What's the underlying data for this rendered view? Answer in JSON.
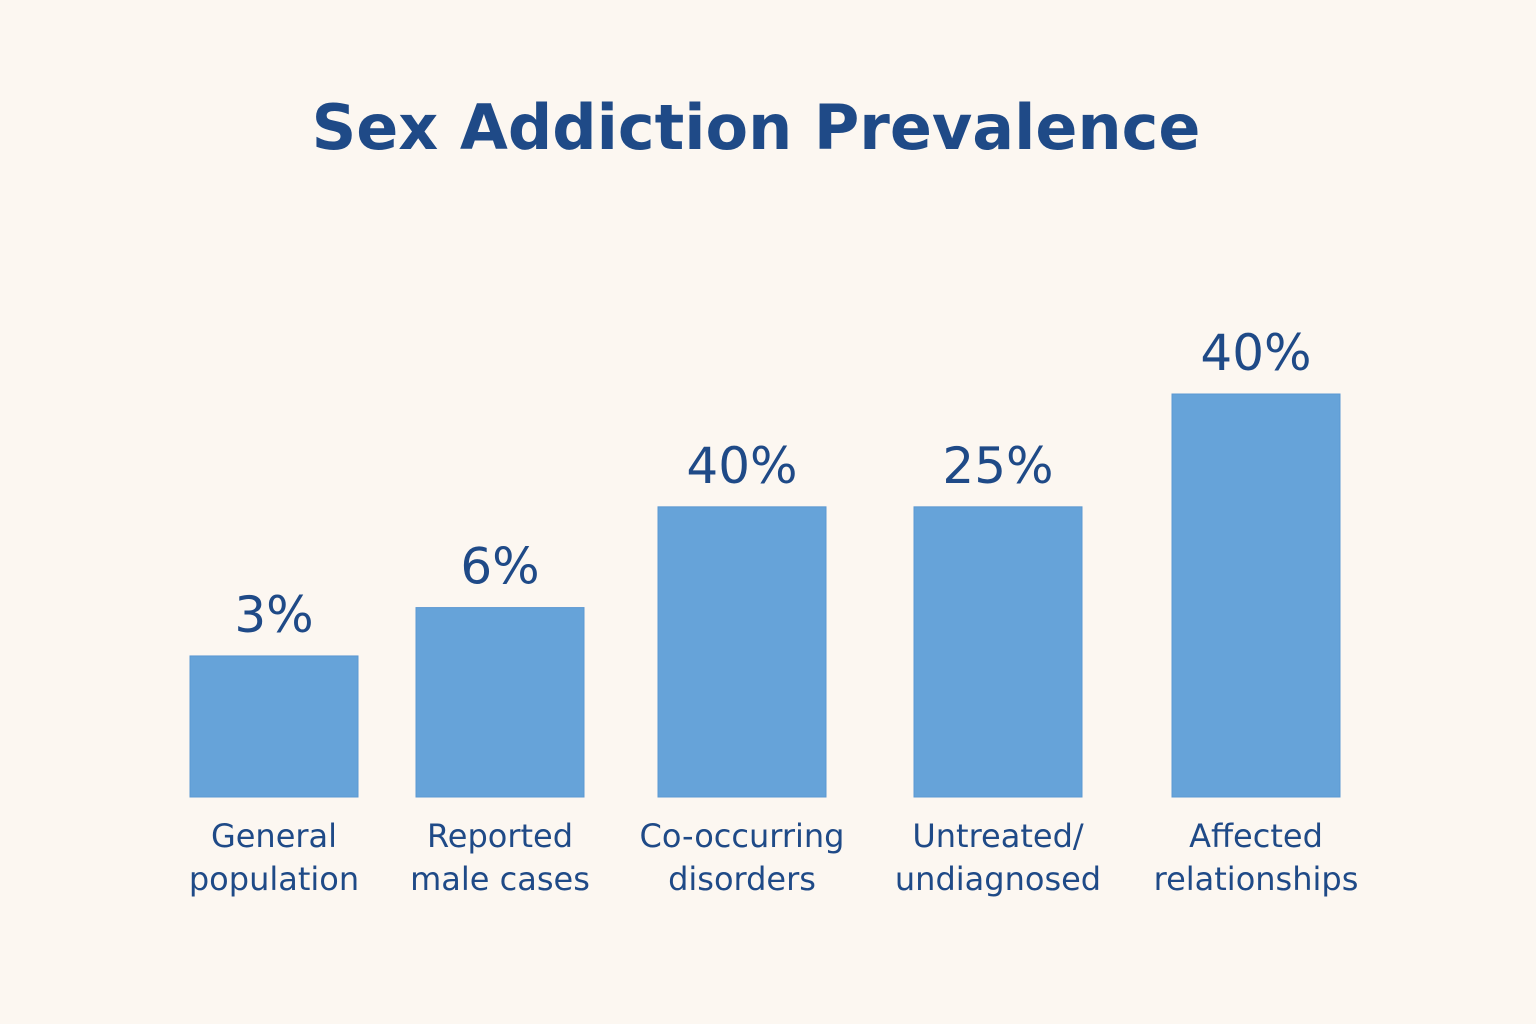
{
  "colors": {
    "background": "#fcf7f1",
    "bar": "#66a3d9",
    "text": "#1f4a87"
  },
  "chart_data": {
    "type": "bar",
    "title": "Sex Addiction Prevalence",
    "categories": [
      [
        "General",
        "population"
      ],
      [
        "Reported",
        "male cases"
      ],
      [
        "Co-occurring",
        "disorders"
      ],
      [
        "Untreated/",
        "undiagnosed"
      ],
      [
        "Affected",
        "relationships"
      ]
    ],
    "values": [
      3,
      6,
      40,
      25,
      40
    ],
    "bar_levels": [
      0.35,
      0.47,
      0.72,
      0.72,
      1.0
    ],
    "value_labels": [
      "3%",
      "6%",
      "40%",
      "25%",
      "40%"
    ],
    "xlabel": "",
    "ylabel": "",
    "grid": false,
    "legend": "none"
  }
}
